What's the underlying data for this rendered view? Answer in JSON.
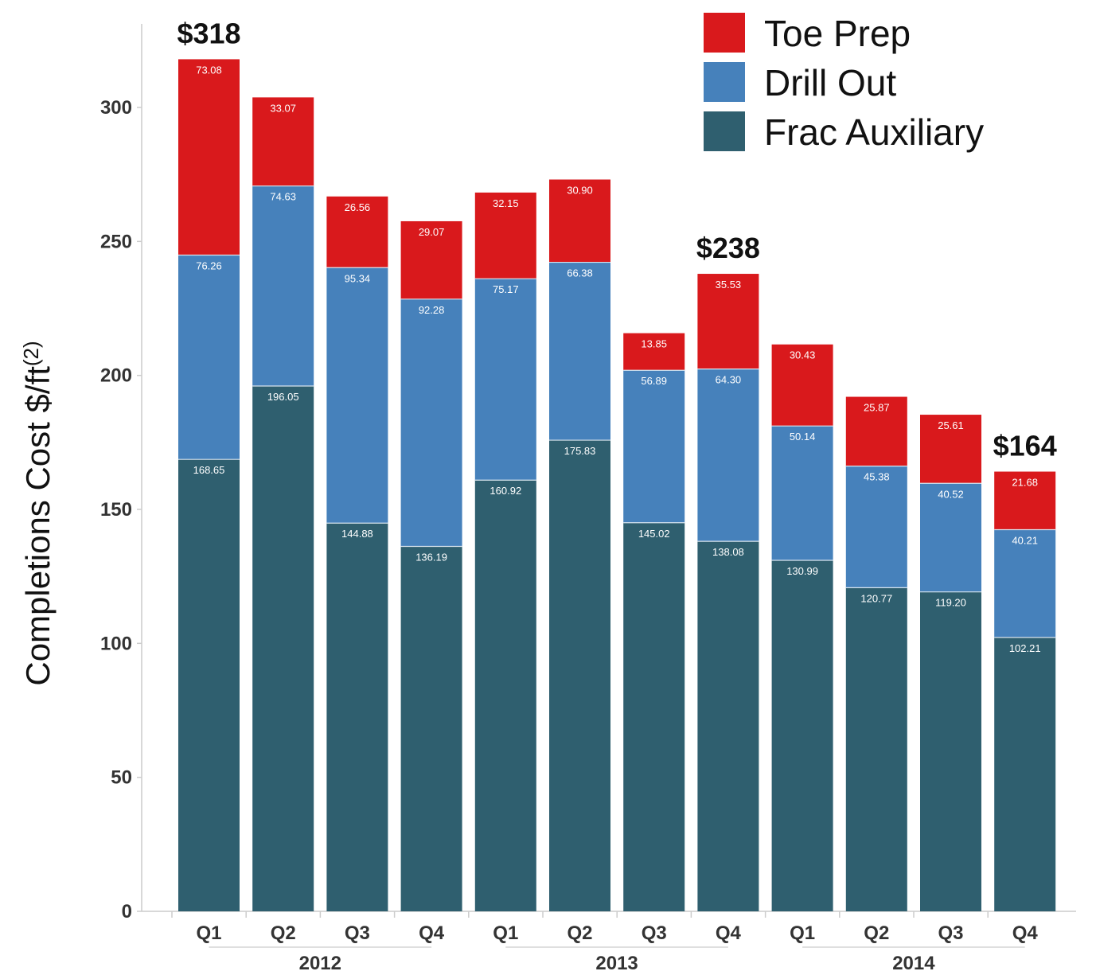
{
  "chart_data": {
    "type": "bar",
    "stacked": true,
    "ylabel": "Completions Cost   $/ft",
    "ylabel_superscript": "(2)",
    "ylim": [
      0,
      330
    ],
    "yticks": [
      0,
      50,
      100,
      150,
      200,
      250,
      300
    ],
    "categories": [
      "Q1",
      "Q2",
      "Q3",
      "Q4",
      "Q1",
      "Q2",
      "Q3",
      "Q4",
      "Q1",
      "Q2",
      "Q3",
      "Q4"
    ],
    "groups": [
      {
        "label": "2012",
        "count": 4
      },
      {
        "label": "2013",
        "count": 4
      },
      {
        "label": "2014",
        "count": 4
      }
    ],
    "series": [
      {
        "name": "Frac Auxiliary",
        "color": "#2f5f6f",
        "values": [
          168.65,
          196.05,
          144.88,
          136.19,
          160.92,
          175.83,
          145.02,
          138.08,
          130.99,
          120.77,
          119.2,
          102.21
        ],
        "labels": [
          "168.65",
          "196.05",
          "144.88",
          "136.19",
          "160.92",
          "175.83",
          "145.02",
          "138.08",
          "130.99",
          "120.77",
          "119.20",
          "102.21"
        ]
      },
      {
        "name": "Drill Out",
        "color": "#4681bb",
        "values": [
          76.26,
          74.63,
          95.34,
          92.28,
          75.17,
          66.38,
          56.89,
          64.3,
          50.14,
          45.38,
          40.52,
          40.21
        ],
        "labels": [
          "76.26",
          "74.63",
          "95.34",
          "92.28",
          "75.17",
          "66.38",
          "56.89",
          "64.30",
          "50.14",
          "45.38",
          "40.52",
          "40.21"
        ]
      },
      {
        "name": "Toe Prep",
        "color": "#d9191c",
        "values": [
          73.08,
          33.07,
          26.56,
          29.07,
          32.15,
          30.9,
          13.85,
          35.53,
          30.43,
          25.87,
          25.61,
          21.68
        ],
        "labels": [
          "73.08",
          "33.07",
          "26.56",
          "29.07",
          "32.15",
          "30.90",
          "13.85",
          "35.53",
          "30.43",
          "25.87",
          "25.61",
          "21.68"
        ]
      }
    ],
    "annotations": [
      {
        "bar_index": 0,
        "text": "$318"
      },
      {
        "bar_index": 7,
        "text": "$238"
      },
      {
        "bar_index": 11,
        "text": "$164"
      }
    ],
    "legend": {
      "placement": "top-right",
      "entries": [
        {
          "name": "Toe Prep",
          "color": "#d9191c"
        },
        {
          "name": "Drill Out",
          "color": "#4681bb"
        },
        {
          "name": "Frac Auxiliary",
          "color": "#2f5f6f"
        }
      ]
    },
    "grid": false
  }
}
